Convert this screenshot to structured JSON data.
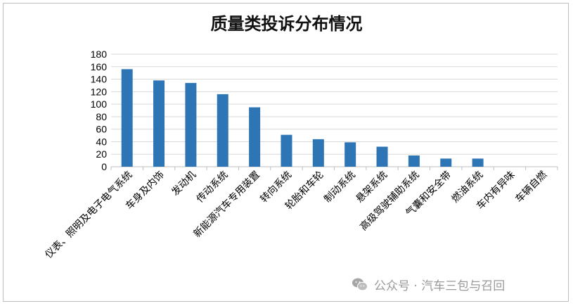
{
  "chart_data": {
    "type": "bar",
    "title": "质量类投诉分布情况",
    "xlabel": "",
    "ylabel": "",
    "ylim": [
      0,
      180
    ],
    "yticks": [
      0,
      20,
      40,
      60,
      80,
      100,
      120,
      140,
      160,
      180
    ],
    "grid": true,
    "legend": "none",
    "categories": [
      "仪表、照明及电子电气系统",
      "车身及内饰",
      "发动机",
      "传动系统",
      "新能源汽车专用装置",
      "转向系统",
      "轮胎和车轮",
      "制动系统",
      "悬架系统",
      "高级驾驶辅助系统",
      "气囊和安全带",
      "燃油系统",
      "车内有异味",
      "车辆自燃"
    ],
    "values": [
      156,
      138,
      134,
      116,
      95,
      51,
      44,
      39,
      32,
      18,
      13,
      13,
      0,
      0
    ],
    "colors": {
      "bar": "#2e75b6",
      "grid": "#d9d9d9",
      "axis": "#bfbfbf"
    }
  },
  "watermark": {
    "text": "公众号 · 汽车三包与召回",
    "icon": "wechat-icon"
  }
}
